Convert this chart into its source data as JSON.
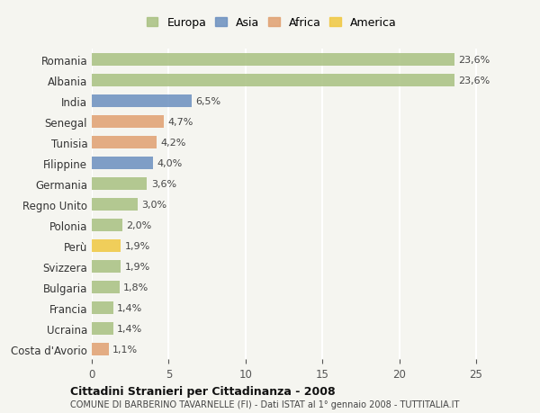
{
  "categories": [
    "Romania",
    "Albania",
    "India",
    "Senegal",
    "Tunisia",
    "Filippine",
    "Germania",
    "Regno Unito",
    "Polonia",
    "Perù",
    "Svizzera",
    "Bulgaria",
    "Francia",
    "Ucraina",
    "Costa d'Avorio"
  ],
  "values": [
    23.6,
    23.6,
    6.5,
    4.7,
    4.2,
    4.0,
    3.6,
    3.0,
    2.0,
    1.9,
    1.9,
    1.8,
    1.4,
    1.4,
    1.1
  ],
  "labels": [
    "23,6%",
    "23,6%",
    "6,5%",
    "4,7%",
    "4,2%",
    "4,0%",
    "3,6%",
    "3,0%",
    "2,0%",
    "1,9%",
    "1,9%",
    "1,8%",
    "1,4%",
    "1,4%",
    "1,1%"
  ],
  "continent": [
    "Europa",
    "Europa",
    "Asia",
    "Africa",
    "Africa",
    "Asia",
    "Europa",
    "Europa",
    "Europa",
    "America",
    "Europa",
    "Europa",
    "Europa",
    "Europa",
    "Africa"
  ],
  "colors": {
    "Europa": "#a8c080",
    "Asia": "#6b8fbf",
    "Africa": "#e0a070",
    "America": "#f0c840"
  },
  "background_color": "#f5f5f0",
  "grid_color": "#ffffff",
  "title1": "Cittadini Stranieri per Cittadinanza - 2008",
  "title2": "COMUNE DI BARBERINO TAVARNELLE (FI) - Dati ISTAT al 1° gennaio 2008 - TUTTITALIA.IT",
  "xlim": [
    0,
    26
  ],
  "xticks": [
    0,
    5,
    10,
    15,
    20,
    25
  ],
  "legend_order": [
    "Europa",
    "Asia",
    "Africa",
    "America"
  ]
}
